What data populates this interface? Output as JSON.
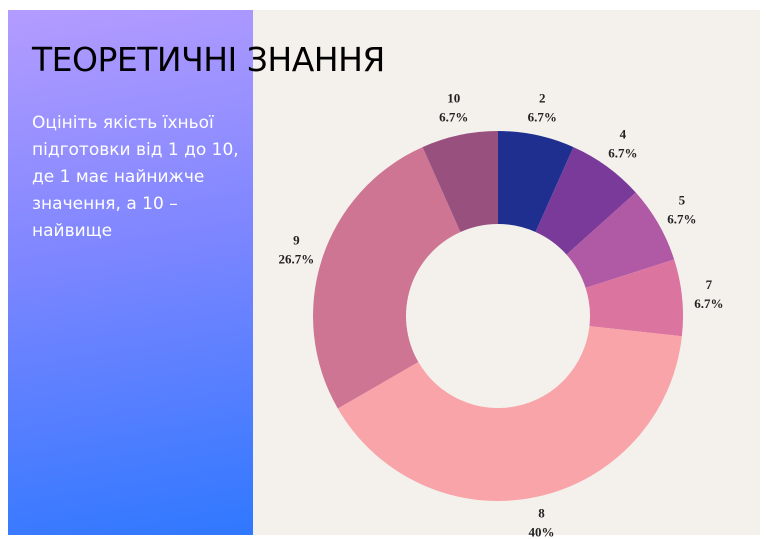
{
  "chart_data": {
    "type": "donut",
    "title": "ТЕОРЕТИЧНІ ЗНАННЯ",
    "subtitle": "Оцініть якість їхньої підготовки від 1 до 10, де 1 має найнижче значення, а 10 – найвище",
    "categories": [
      "2",
      "4",
      "5",
      "7",
      "8",
      "9",
      "10"
    ],
    "values": [
      6.7,
      6.7,
      6.7,
      6.7,
      40,
      26.7,
      6.7
    ],
    "value_labels": [
      "6.7%",
      "6.7%",
      "6.7%",
      "6.7%",
      "40%",
      "26.7%",
      "6.7%"
    ],
    "colors": [
      "#1f2f8f",
      "#7a3a9a",
      "#b05aa5",
      "#dc74a0",
      "#f8a4a8",
      "#cf7594",
      "#98507f"
    ]
  }
}
